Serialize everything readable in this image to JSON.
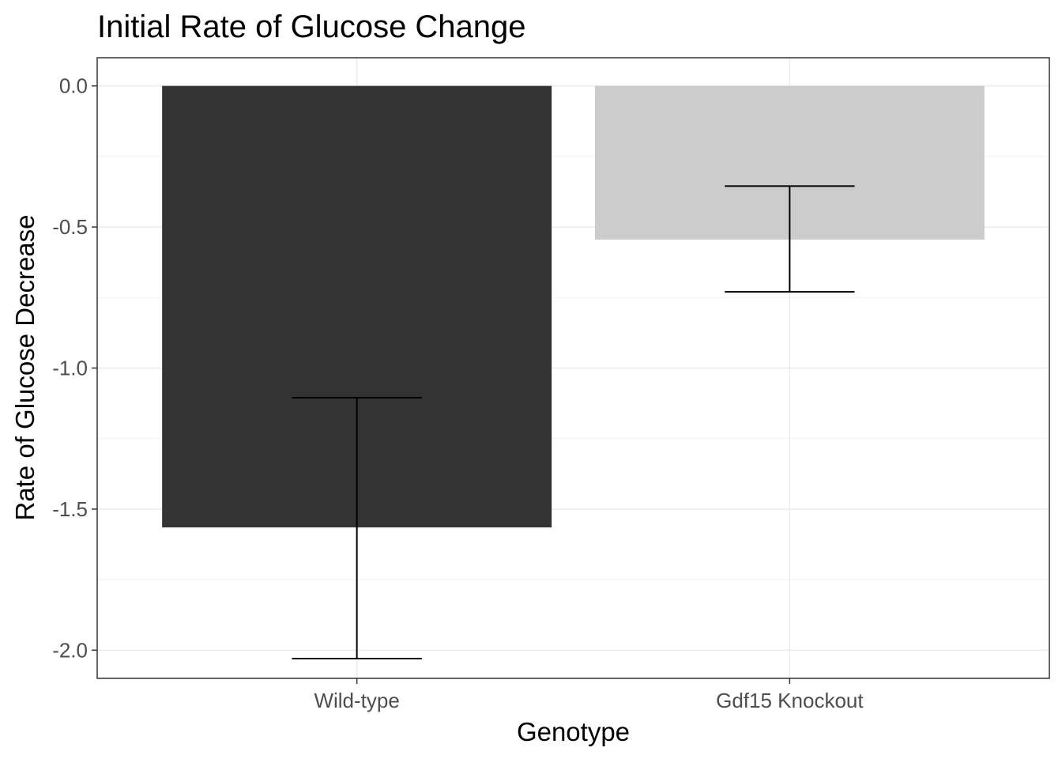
{
  "chart_data": {
    "type": "bar",
    "title": "Initial Rate of Glucose Change",
    "xlabel": "Genotype",
    "ylabel": "Rate of Glucose Decrease",
    "categories": [
      "Wild-type",
      "Gdf15 Knockout"
    ],
    "values": [
      -1.565,
      -0.545
    ],
    "error_low": [
      -2.03,
      -0.73
    ],
    "error_high": [
      -1.105,
      -0.355
    ],
    "bar_colors": [
      "#333333",
      "#cccccc"
    ],
    "ylim": [
      -2.1,
      0.1
    ],
    "yticks": [
      0.0,
      -0.5,
      -1.0,
      -1.5,
      -2.0
    ],
    "ytick_labels": [
      "0.0",
      "-0.5",
      "-1.0",
      "-1.5",
      "-2.0"
    ],
    "grid": true,
    "legend": "none"
  }
}
